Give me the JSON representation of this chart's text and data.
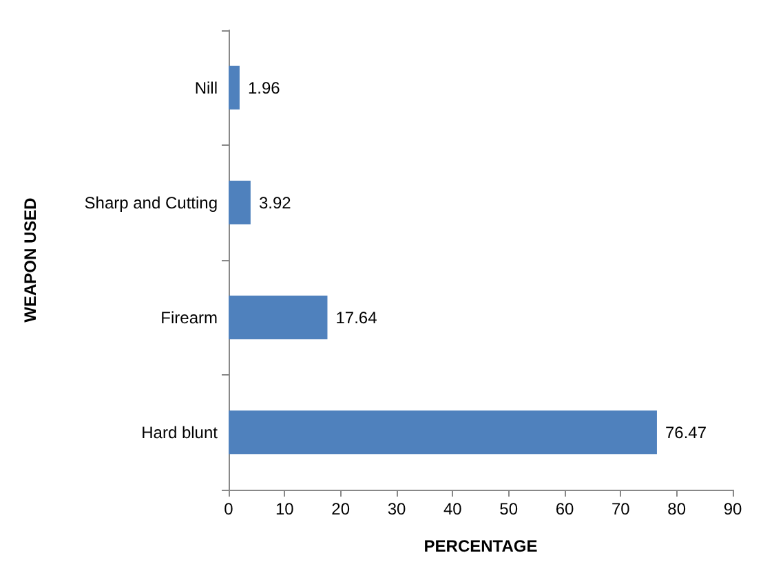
{
  "chart_data": {
    "type": "bar",
    "orientation": "horizontal",
    "xlabel": "PERCENTAGE",
    "ylabel": "WEAPON USED",
    "categories": [
      "Nill",
      "Sharp and Cutting",
      "Firearm",
      "Hard blunt"
    ],
    "values": [
      1.96,
      3.92,
      17.64,
      76.47
    ],
    "color": "#4f81bd",
    "xlim": [
      0,
      90
    ],
    "xticks": [
      0,
      10,
      20,
      30,
      40,
      50,
      60,
      70,
      80,
      90
    ],
    "data_labels": true,
    "grid": false
  }
}
